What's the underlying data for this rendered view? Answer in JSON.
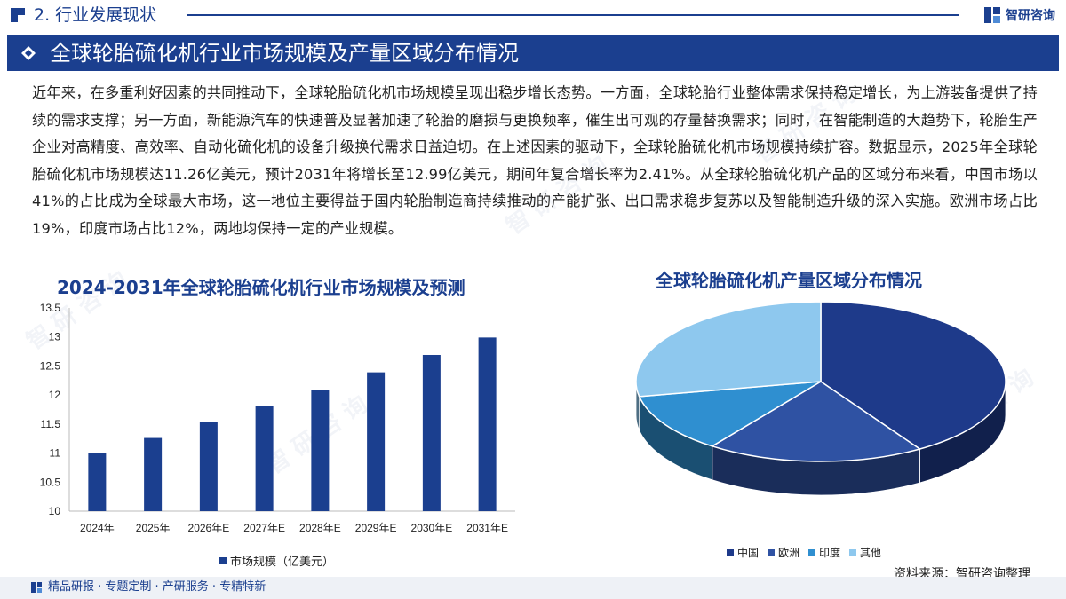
{
  "header": {
    "section_label": "2. 行业发展现状",
    "brand": "智研咨询"
  },
  "banner": {
    "title": "全球轮胎硫化机行业市场规模及产量区域分布情况"
  },
  "paragraph": "近年来，在多重利好因素的共同推动下，全球轮胎硫化机市场规模呈现出稳步增长态势。一方面，全球轮胎行业整体需求保持稳定增长，为上游装备提供了持续的需求支撑；另一方面，新能源汽车的快速普及显著加速了轮胎的磨损与更换频率，催生出可观的存量替换需求；同时，在智能制造的大趋势下，轮胎生产企业对高精度、高效率、自动化硫化机的设备升级换代需求日益迫切。在上述因素的驱动下，全球轮胎硫化机市场规模持续扩容。数据显示，2025年全球轮胎硫化机市场规模达11.26亿美元，预计2031年将增长至12.99亿美元，期间年复合增长率为2.41%。从全球轮胎硫化机产品的区域分布来看，中国市场以41%的占比成为全球最大市场，这一地位主要得益于国内轮胎制造商持续推动的产能扩张、出口需求稳步复苏以及智能制造升级的深入实施。欧洲市场占比19%，印度市场占比12%，两地均保持一定的产业规模。",
  "colors": {
    "brand": "#1b3f8f",
    "bar": "#1b3f8f",
    "china": "#1e3a8a",
    "europe": "#2f52a3",
    "india": "#2f8fd0",
    "other": "#8ec8ee"
  },
  "chart_data": [
    {
      "type": "bar",
      "title": "2024-2031年全球轮胎硫化机行业市场规模及预测",
      "categories": [
        "2024年",
        "2025年",
        "2026年E",
        "2027年E",
        "2028年E",
        "2029年E",
        "2030年E",
        "2031年E"
      ],
      "series": [
        {
          "name": "市场规模（亿美元）",
          "values": [
            11.0,
            11.26,
            11.53,
            11.81,
            12.09,
            12.39,
            12.69,
            12.99
          ]
        }
      ],
      "y_ticks": [
        "13.5",
        "13",
        "12.5",
        "12",
        "11.5",
        "11",
        "10.5",
        "10"
      ],
      "ylim": [
        10,
        13.5
      ],
      "grid": false,
      "legend_position": "bottom"
    },
    {
      "type": "pie",
      "title": "全球轮胎硫化机产量区域分布情况",
      "labels": [
        "中国",
        "欧洲",
        "印度",
        "其他"
      ],
      "values": [
        41,
        19,
        12,
        28
      ],
      "legend_position": "bottom",
      "style": "3d"
    }
  ],
  "source": "资料来源：智研咨询整理",
  "footer": {
    "text": "精品研报 · 专题定制 · 产研服务 · 专精特新"
  }
}
